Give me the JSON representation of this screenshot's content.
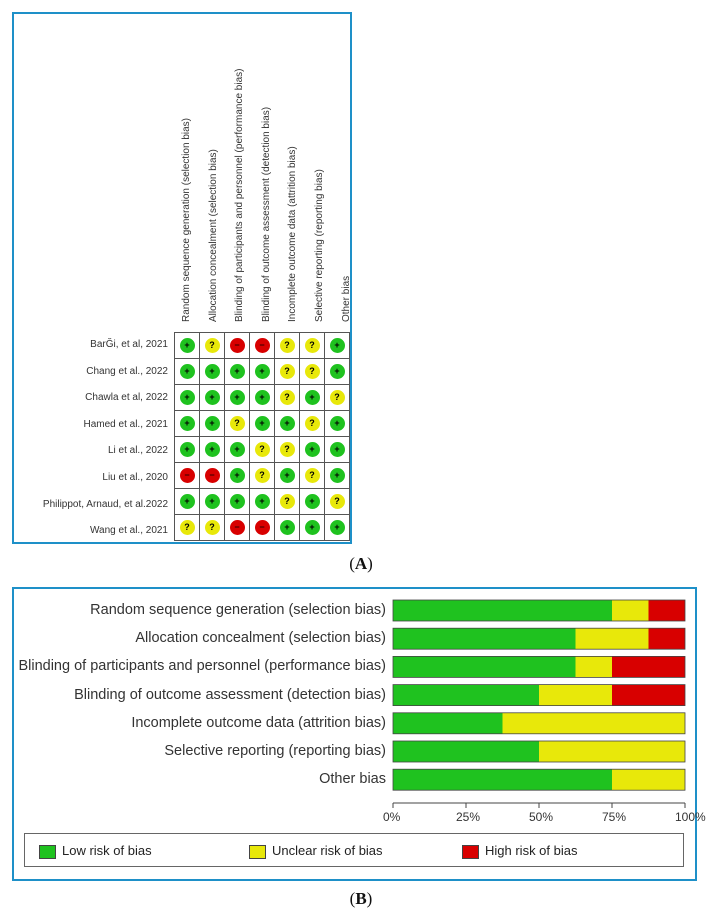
{
  "panel_a": {
    "caption_letter": "A",
    "columns": [
      "Random sequence generation (selection bias)",
      "Allocation concealment (selection bias)",
      "Blinding of participants and personnel (performance bias)",
      "Blinding of outcome assessment (detection bias)",
      "Incomplete outcome data (attrition bias)",
      "Selective reporting (reporting bias)",
      "Other bias"
    ],
    "studies": [
      {
        "name": "BarĞi, et al, 2021",
        "ratings": [
          "low",
          "unclear",
          "high",
          "high",
          "unclear",
          "unclear",
          "low"
        ]
      },
      {
        "name": "Chang et al., 2022",
        "ratings": [
          "low",
          "low",
          "low",
          "low",
          "unclear",
          "unclear",
          "low"
        ]
      },
      {
        "name": "Chawla et al, 2022",
        "ratings": [
          "low",
          "low",
          "low",
          "low",
          "unclear",
          "low",
          "unclear"
        ]
      },
      {
        "name": "Hamed et al., 2021",
        "ratings": [
          "low",
          "low",
          "unclear",
          "low",
          "low",
          "unclear",
          "low"
        ]
      },
      {
        "name": "Li et al., 2022",
        "ratings": [
          "low",
          "low",
          "low",
          "unclear",
          "unclear",
          "low",
          "low"
        ]
      },
      {
        "name": "Liu et al., 2020",
        "ratings": [
          "high",
          "high",
          "low",
          "unclear",
          "low",
          "unclear",
          "low"
        ]
      },
      {
        "name": "Philippot, Arnaud, et al.2022",
        "ratings": [
          "low",
          "low",
          "low",
          "low",
          "unclear",
          "low",
          "unclear"
        ]
      },
      {
        "name": "Wang et al., 2021",
        "ratings": [
          "unclear",
          "unclear",
          "high",
          "high",
          "low",
          "low",
          "low"
        ]
      }
    ],
    "symbols": {
      "low": "+",
      "unclear": "?",
      "high": "−"
    }
  },
  "panel_b": {
    "caption_letter": "B"
  },
  "colors": {
    "low": "#1fc21f",
    "unclear": "#e8e80a",
    "high": "#d80000",
    "frame": "#1e90c8"
  },
  "chart_data": {
    "type": "bar",
    "orientation": "horizontal-stacked-percent",
    "categories": [
      "Random sequence generation (selection bias)",
      "Allocation concealment (selection bias)",
      "Blinding of participants and personnel (performance bias)",
      "Blinding of outcome assessment (detection bias)",
      "Incomplete outcome data (attrition bias)",
      "Selective reporting (reporting bias)",
      "Other bias"
    ],
    "series": [
      {
        "name": "Low risk of bias",
        "values": [
          75,
          62.5,
          62.5,
          50,
          37.5,
          50,
          75
        ]
      },
      {
        "name": "Unclear risk of bias",
        "values": [
          12.5,
          25,
          12.5,
          25,
          62.5,
          50,
          25
        ]
      },
      {
        "name": "High risk of bias",
        "values": [
          12.5,
          12.5,
          25,
          25,
          0,
          0,
          0
        ]
      }
    ],
    "xticks": [
      "0%",
      "25%",
      "50%",
      "75%",
      "100%"
    ],
    "xlim": [
      0,
      100
    ],
    "legend": "bottom"
  }
}
